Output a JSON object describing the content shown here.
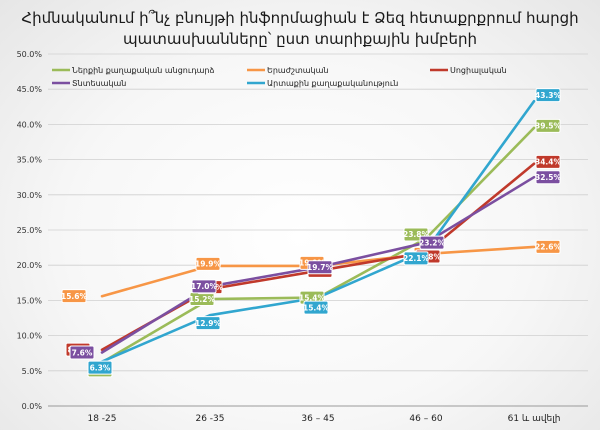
{
  "chart_data": {
    "type": "line",
    "title_lines": [
      "Հիմնականում ի՞նչ բնույթի ինֆորմացիան է Ձեզ հետաքրքրում հարցի",
      "պատասխանները՝ ըստ տարիքային խմբերի"
    ],
    "categories": [
      "18 -25",
      "26 -35",
      "36 – 45",
      "46 – 60",
      "61 և ավելի"
    ],
    "ylim": [
      0,
      50
    ],
    "yticks": [
      "0.0%",
      "5.0%",
      "10.0%",
      "15.0%",
      "20.0%",
      "25.0%",
      "30.0%",
      "35.0%",
      "40.0%",
      "45.0%",
      "50.0%"
    ],
    "grid": true,
    "legend_position": "top",
    "series": [
      {
        "name": "Ներքին քաղաքական անցուդարձ",
        "color": "#9bbb59",
        "values": [
          6.2,
          15.2,
          15.4,
          23.8,
          39.5
        ],
        "labels": [
          "6.2%",
          "15.2%",
          "15.4%",
          "23.8%",
          "39.5%"
        ]
      },
      {
        "name": "Երաժշտական",
        "color": "#f79646",
        "values": [
          15.6,
          19.9,
          19.9,
          21.6,
          22.6
        ],
        "labels": [
          "15.6%",
          "19.9%",
          "19.9%",
          "21.6%",
          "22.6%"
        ]
      },
      {
        "name": "Սոցիալական",
        "color": "#c0392b",
        "values": [
          8.0,
          16.6,
          19.2,
          21.8,
          34.4
        ],
        "labels": [
          "8.0%",
          "16.6%",
          "19.2%",
          "21.8%",
          "34.4%"
        ]
      },
      {
        "name": "Տնտեսական",
        "color": "#7b4fa0",
        "values": [
          7.6,
          17.0,
          19.7,
          23.2,
          32.5
        ],
        "labels": [
          "7.6%",
          "17.0%",
          "19.7%",
          "23.2%",
          "32.5%"
        ]
      },
      {
        "name": "Արտաքին քաղաքականություն",
        "color": "#31a6cf",
        "values": [
          6.3,
          12.9,
          15.4,
          22.1,
          43.3
        ],
        "labels": [
          "6.3%",
          "12.9%",
          "15.4%",
          "22.1%",
          "43.3%"
        ]
      }
    ]
  }
}
